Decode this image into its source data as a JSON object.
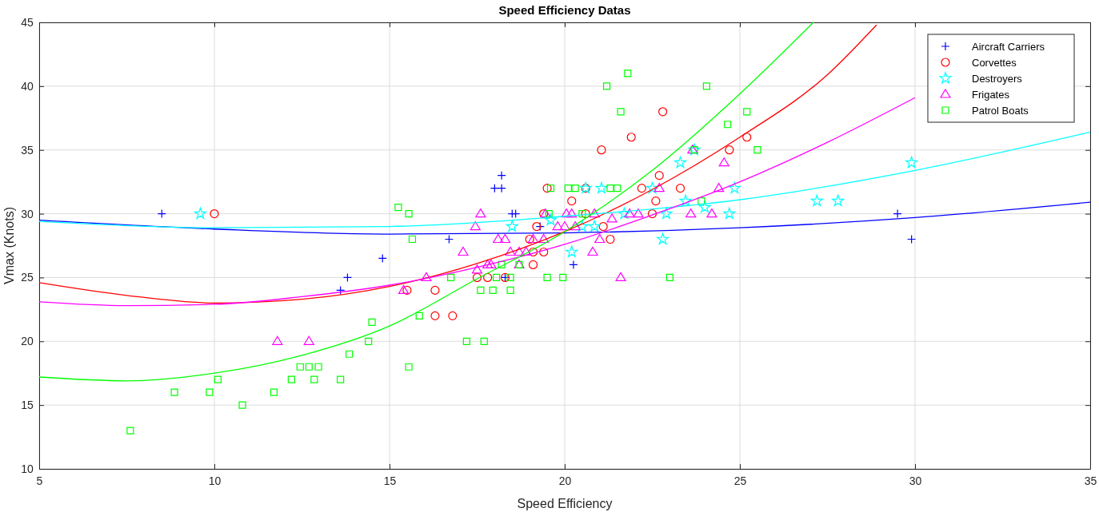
{
  "chart_data": {
    "type": "scatter",
    "title": "Speed Efficiency Datas",
    "xlabel": "Speed Efficiency",
    "ylabel": "Vmax (Knots)",
    "xlim": [
      5,
      35
    ],
    "ylim": [
      10,
      45
    ],
    "xticks": [
      5,
      10,
      15,
      20,
      25,
      30,
      35
    ],
    "yticks": [
      10,
      15,
      20,
      25,
      30,
      35,
      40,
      45
    ],
    "grid": true,
    "legend": "top right",
    "series": [
      {
        "name": "Aircraft Carriers",
        "color": "#0000ff",
        "marker": "cross",
        "x": [
          8.5,
          13.6,
          13.8,
          14.8,
          16.7,
          18.0,
          18.2,
          18.2,
          18.5,
          18.6,
          19.3,
          18.3,
          20.25,
          29.5,
          29.9
        ],
        "values": [
          30,
          24,
          25,
          26.5,
          28,
          32,
          32,
          33,
          30,
          30,
          29,
          25,
          26,
          30,
          28
        ]
      },
      {
        "name": "Corvettes",
        "color": "#ff0000",
        "marker": "circle",
        "x": [
          10,
          15.5,
          16.3,
          16.3,
          16.8,
          17.5,
          17.8,
          18.3,
          19.0,
          19.1,
          19.4,
          19.1,
          19.2,
          19.4,
          19.5,
          20.2,
          20.6,
          20.6,
          21.1,
          21.3,
          21.05,
          21.9,
          22.8,
          22.2,
          22.7,
          22.6,
          22.5,
          23.3,
          24.7,
          25.2
        ],
        "values": [
          30,
          24,
          24,
          22,
          22,
          25,
          25,
          25,
          28,
          27,
          27,
          26,
          29,
          30,
          32,
          31,
          30,
          32,
          29,
          28,
          35,
          36,
          38,
          32,
          33,
          31,
          30,
          32,
          35,
          36
        ]
      },
      {
        "name": "Destroyers",
        "color": "#00ffff",
        "marker": "star",
        "x": [
          9.6,
          18.5,
          19.6,
          20.2,
          20.5,
          20.85,
          20.6,
          21.05,
          21.7,
          22.5,
          22.8,
          22.9,
          23.3,
          23.45,
          23.7,
          24.0,
          24.7,
          24.85,
          27.2,
          27.8,
          29.9
        ],
        "values": [
          30,
          29,
          29.5,
          27,
          29,
          29,
          32,
          32,
          30,
          32,
          28,
          30,
          34,
          31,
          35,
          30.5,
          30,
          32,
          31,
          31,
          34
        ]
      },
      {
        "name": "Frigates",
        "color": "#ff00ff",
        "marker": "triangle",
        "x": [
          11.8,
          12.7,
          15.4,
          16.05,
          17.1,
          17.45,
          17.6,
          17.5,
          17.8,
          17.9,
          18.1,
          18.3,
          18.45,
          18.7,
          18.9,
          18.7,
          19.1,
          19.4,
          19.45,
          19.8,
          20.0,
          20.3,
          20.05,
          20.2,
          20.85,
          20.8,
          21.0,
          21.35,
          21.6,
          21.85,
          22.1,
          22.7,
          23.6,
          23.65,
          24.2,
          24.4,
          24.55
        ],
        "values": [
          20,
          20,
          24,
          25,
          27,
          29,
          30,
          25.6,
          26,
          26,
          28,
          28,
          27,
          27,
          27,
          26,
          28,
          28,
          30,
          29,
          29,
          29,
          30,
          30,
          30,
          27,
          28,
          29.6,
          25,
          30,
          30,
          32,
          30,
          35,
          30,
          32,
          34
        ]
      },
      {
        "name": "Patrol Boats",
        "color": "#00ff00",
        "marker": "square",
        "x": [
          7.6,
          8.86,
          9.86,
          10.1,
          10.8,
          11.7,
          12.2,
          12.45,
          12.7,
          12.97,
          12.85,
          13.6,
          13.85,
          14.4,
          14.5,
          15.25,
          15.55,
          15.65,
          15.55,
          15.85,
          16.75,
          17.2,
          17.6,
          17.7,
          17.95,
          18.05,
          18.2,
          18.45,
          18.45,
          18.7,
          19.5,
          19.95,
          19.55,
          19.6,
          20.1,
          20.3,
          20.5,
          21.2,
          21.3,
          21.5,
          21.6,
          21.8,
          23.0,
          23.7,
          23.9,
          24.05,
          24.65,
          25.2,
          25.5
        ],
        "values": [
          13,
          16,
          16,
          17,
          15,
          16,
          17,
          18,
          18,
          18,
          17,
          17,
          19,
          20,
          21.5,
          30.5,
          30,
          28,
          18,
          22,
          25,
          20,
          24,
          20,
          24,
          25,
          26,
          25,
          24,
          26,
          25,
          25,
          30,
          32,
          32,
          32,
          30,
          40,
          32,
          32,
          38,
          41,
          25,
          35,
          31,
          40,
          37,
          38,
          35
        ]
      },
      {
        "type": "line",
        "color": "#0000ff",
        "x": [
          5,
          10,
          15,
          20,
          25,
          30,
          35
        ],
        "values": [
          29.5,
          28.8,
          28.4,
          28.5,
          28.9,
          29.7,
          30.9
        ]
      },
      {
        "type": "line",
        "color": "#ff0000",
        "x": [
          5,
          7.5,
          10,
          12.5,
          15,
          17.5,
          20,
          22.5,
          25,
          27.5,
          28.9
        ],
        "values": [
          24.6,
          23.6,
          23.0,
          23.3,
          24.3,
          26.1,
          28.6,
          31.9,
          36.0,
          40.9,
          44.8
        ]
      },
      {
        "type": "line",
        "color": "#00ffff",
        "x": [
          5,
          10,
          15,
          20,
          25,
          30,
          35
        ],
        "values": [
          29.4,
          28.9,
          29.0,
          29.8,
          31.1,
          33.4,
          36.4
        ]
      },
      {
        "type": "line",
        "color": "#ff00ff",
        "x": [
          5,
          7.5,
          10,
          12.5,
          15,
          17.5,
          20,
          22.5,
          25,
          27.5,
          30
        ],
        "values": [
          23.1,
          22.8,
          22.9,
          23.5,
          24.4,
          25.8,
          27.6,
          29.9,
          32.5,
          35.6,
          39.1
        ]
      },
      {
        "type": "line",
        "color": "#00ff00",
        "x": [
          5,
          7.5,
          10,
          12.5,
          15,
          17.5,
          20,
          22.5,
          25,
          27.1
        ],
        "values": [
          17.2,
          16.9,
          17.5,
          18.9,
          21.2,
          24.9,
          28.6,
          33.4,
          39.4,
          45.0
        ]
      }
    ]
  }
}
